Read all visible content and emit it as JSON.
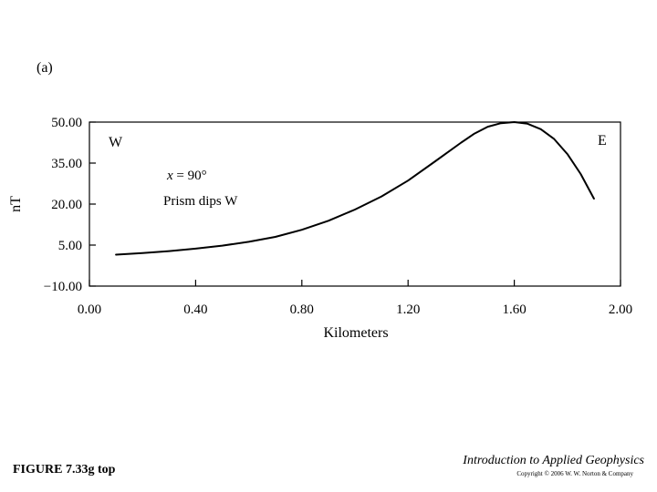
{
  "panel_label": "(a)",
  "figure_label": "FIGURE 7.33g top",
  "book_title": "Introduction to Applied Geophysics",
  "copyright": "Copyright © 2006 W. W. Norton & Company",
  "chart_data": {
    "type": "line",
    "title": "",
    "xlabel": "Kilometers",
    "ylabel": "nT",
    "xlim": [
      0.0,
      2.0
    ],
    "ylim": [
      -10.0,
      50.0
    ],
    "xticks": [
      "0.00",
      "0.40",
      "0.80",
      "1.20",
      "1.60",
      "2.00"
    ],
    "yticks": [
      "50.00",
      "35.00",
      "20.00",
      "5.00",
      "−10.00"
    ],
    "grid": false,
    "annotations": {
      "west": "W",
      "east": "E",
      "angle_var": "x",
      "angle_rest": " = 90°",
      "note": "Prism dips W"
    },
    "series": [
      {
        "x": [
          0.1,
          0.2,
          0.3,
          0.4,
          0.5,
          0.6,
          0.7,
          0.8,
          0.9,
          1.0,
          1.1,
          1.2,
          1.3,
          1.4,
          1.45,
          1.5,
          1.55,
          1.6,
          1.65,
          1.7,
          1.75,
          1.8,
          1.85,
          1.9
        ],
        "y": [
          1.5,
          2.1,
          2.8,
          3.7,
          4.8,
          6.2,
          8.0,
          10.6,
          13.9,
          18.0,
          22.8,
          28.6,
          35.5,
          42.5,
          45.8,
          48.3,
          49.6,
          50.0,
          49.4,
          47.4,
          43.8,
          38.3,
          31.0,
          22.0
        ]
      }
    ]
  }
}
